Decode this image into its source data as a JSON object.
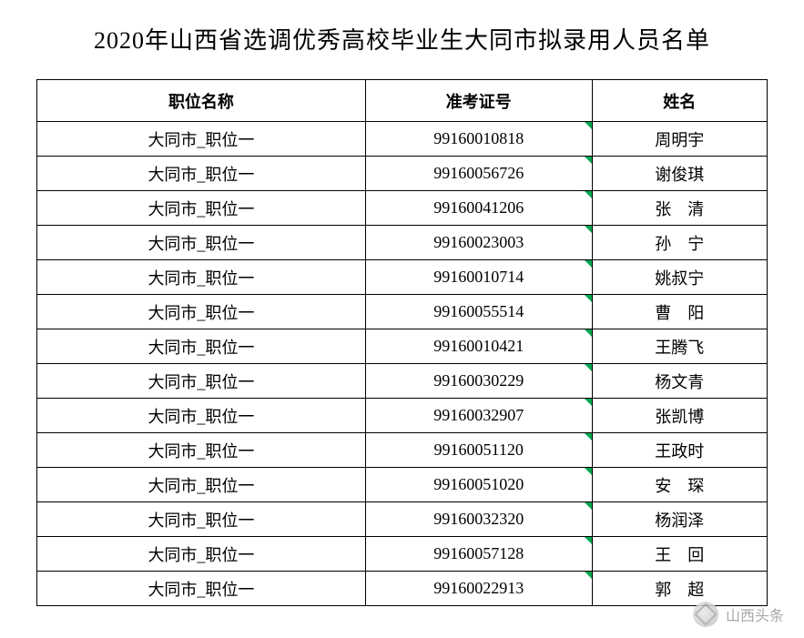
{
  "title": "2020年山西省选调优秀高校毕业生大同市拟录用人员名单",
  "columns": {
    "position": "职位名称",
    "exam_id": "准考证号",
    "name": "姓名"
  },
  "position_label": "大同市_职位一",
  "rows": [
    {
      "exam_id": "99160010818",
      "name_parts": [
        "周明宇"
      ],
      "spaced": false
    },
    {
      "exam_id": "99160056726",
      "name_parts": [
        "谢俊琪"
      ],
      "spaced": false
    },
    {
      "exam_id": "99160041206",
      "name_parts": [
        "张",
        "清"
      ],
      "spaced": true
    },
    {
      "exam_id": "99160023003",
      "name_parts": [
        "孙",
        "宁"
      ],
      "spaced": true
    },
    {
      "exam_id": "99160010714",
      "name_parts": [
        "姚叔宁"
      ],
      "spaced": false
    },
    {
      "exam_id": "99160055514",
      "name_parts": [
        "曹",
        "阳"
      ],
      "spaced": true
    },
    {
      "exam_id": "99160010421",
      "name_parts": [
        "王腾飞"
      ],
      "spaced": false
    },
    {
      "exam_id": "99160030229",
      "name_parts": [
        "杨文青"
      ],
      "spaced": false
    },
    {
      "exam_id": "99160032907",
      "name_parts": [
        "张凯博"
      ],
      "spaced": false
    },
    {
      "exam_id": "99160051120",
      "name_parts": [
        "王政时"
      ],
      "spaced": false
    },
    {
      "exam_id": "99160051020",
      "name_parts": [
        "安",
        "琛"
      ],
      "spaced": true
    },
    {
      "exam_id": "99160032320",
      "name_parts": [
        "杨润泽"
      ],
      "spaced": false
    },
    {
      "exam_id": "99160057128",
      "name_parts": [
        "王",
        "回"
      ],
      "spaced": true
    },
    {
      "exam_id": "99160022913",
      "name_parts": [
        "郭",
        "超"
      ],
      "spaced": true
    }
  ],
  "watermark": {
    "text": "山西头条"
  },
  "colors": {
    "text": "#000000",
    "border": "#000000",
    "triangle": "#00a650",
    "watermark_text": "#9a9a9a",
    "background": "#ffffff"
  }
}
